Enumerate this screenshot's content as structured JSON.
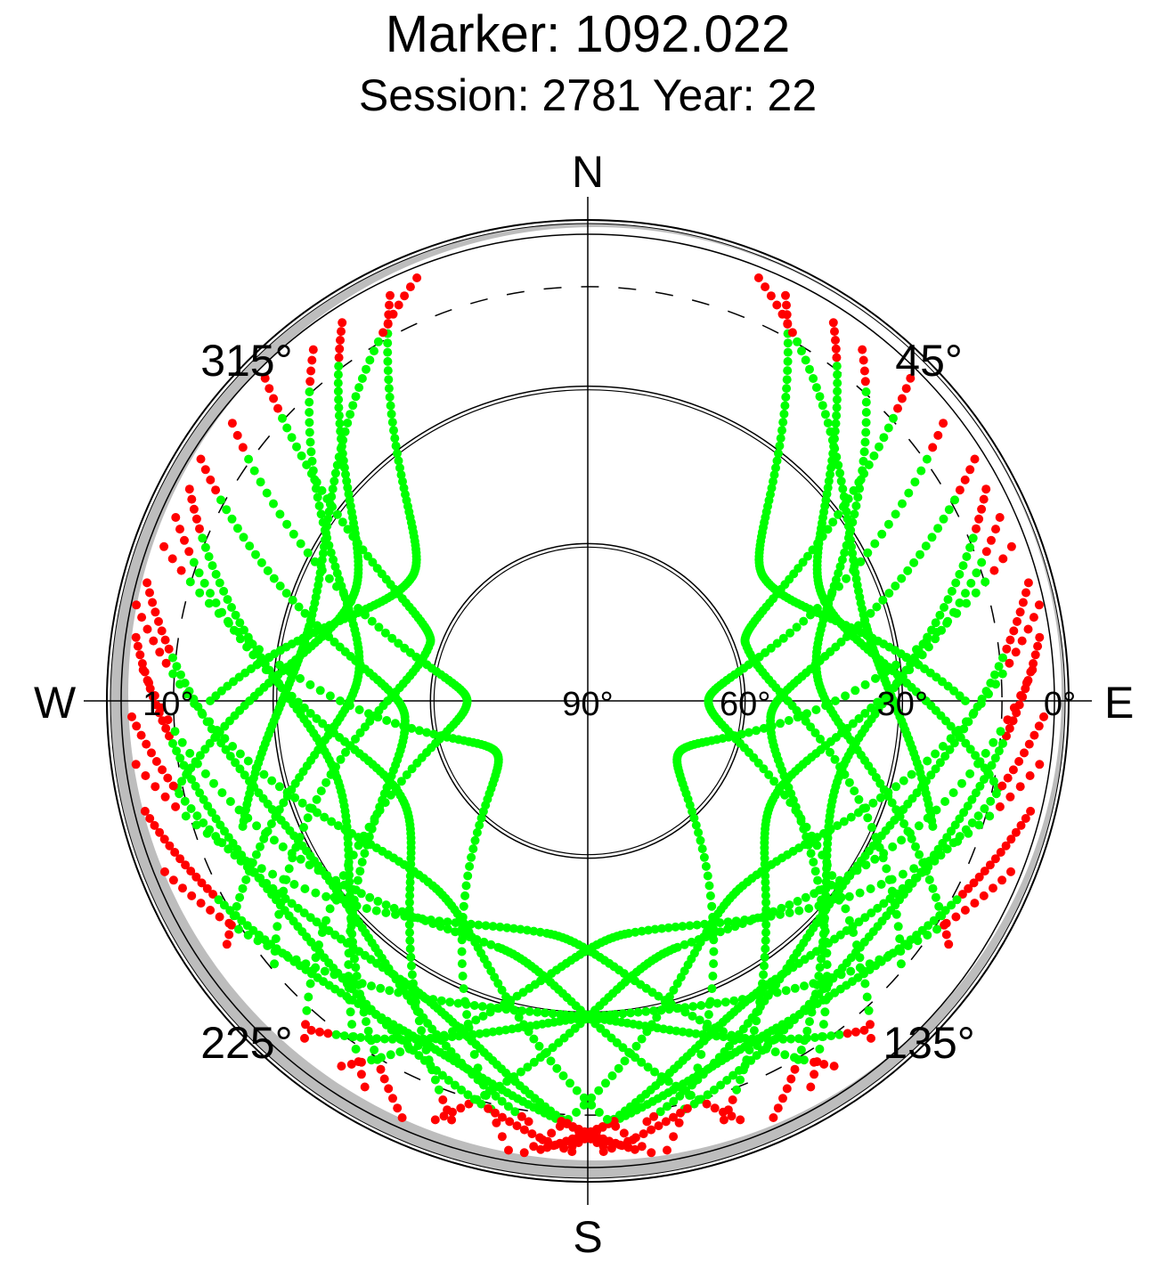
{
  "chart_data": {
    "type": "scatter",
    "projection": "polar-skyplot",
    "title": "Marker: 1092.022",
    "subtitle": "Session: 2781 Year: 22",
    "compass": {
      "north": "N",
      "south": "S",
      "east": "E",
      "west": "W"
    },
    "azimuth_labels": [
      {
        "azimuth": 45,
        "text": "45°"
      },
      {
        "azimuth": 135,
        "text": "135°"
      },
      {
        "azimuth": 225,
        "text": "225°"
      },
      {
        "azimuth": 315,
        "text": "315°"
      }
    ],
    "elevation_labels": [
      {
        "elevation": 90,
        "side": "east",
        "text": "90°"
      },
      {
        "elevation": 60,
        "side": "east",
        "text": "60°"
      },
      {
        "elevation": 30,
        "side": "east",
        "text": "30°"
      },
      {
        "elevation": 0,
        "side": "east",
        "text": "0°"
      },
      {
        "elevation": 10,
        "side": "west",
        "text": "10°"
      }
    ],
    "elevation_circles": [
      30,
      60
    ],
    "dashed_circle_elevation": 10,
    "horizon_mask_color": "#bdbdbd",
    "series_colors": {
      "above_cutoff": "#00ff00",
      "below_cutoff": "#ff0000"
    },
    "cutoff_elevation": 10,
    "tracks": [
      {
        "start": [
          26,
          4
        ],
        "peak": [
          55,
          49
        ],
        "end": [
          90,
          18
        ]
      },
      {
        "start": [
          33,
          4
        ],
        "peak": [
          66,
          41
        ],
        "end": [
          102,
          10
        ]
      },
      {
        "start": [
          38,
          5
        ],
        "peak": [
          83,
          46
        ],
        "end": [
          124,
          7
        ]
      },
      {
        "start": [
          45,
          3
        ],
        "peak": [
          70,
          58
        ],
        "end": [
          130,
          12
        ]
      },
      {
        "start": [
          52,
          4
        ],
        "peak": [
          90,
          67
        ],
        "end": [
          140,
          6
        ]
      },
      {
        "start": [
          58,
          3
        ],
        "peak": [
          95,
          55
        ],
        "end": [
          150,
          5
        ]
      },
      {
        "start": [
          62,
          4
        ],
        "peak": [
          108,
          40
        ],
        "end": [
          156,
          3
        ]
      },
      {
        "start": [
          66,
          4
        ],
        "peak": [
          118,
          50
        ],
        "end": [
          162,
          6
        ]
      },
      {
        "start": [
          70,
          4
        ],
        "peak": [
          120,
          70
        ],
        "end": [
          170,
          3
        ]
      },
      {
        "start": [
          75,
          3
        ],
        "peak": [
          126,
          30
        ],
        "end": [
          172,
          9
        ]
      },
      {
        "start": [
          78,
          2
        ],
        "peak": [
          140,
          44
        ],
        "end": [
          188,
          3
        ]
      },
      {
        "start": [
          82,
          3
        ],
        "peak": [
          130,
          20
        ],
        "end": [
          178,
          4
        ]
      },
      {
        "start": [
          86,
          5
        ],
        "peak": [
          160,
          40
        ],
        "end": [
          200,
          5
        ]
      },
      {
        "start": [
          92,
          3
        ],
        "peak": [
          146,
          26
        ],
        "end": [
          182,
          5
        ]
      },
      {
        "start": [
          98,
          3
        ],
        "peak": [
          170,
          45
        ],
        "end": [
          214,
          6
        ]
      },
      {
        "start": [
          104,
          3
        ],
        "peak": [
          150,
          18
        ],
        "end": [
          186,
          4
        ]
      },
      {
        "start": [
          112,
          3
        ],
        "peak": [
          175,
          30
        ],
        "end": [
          220,
          8
        ]
      },
      {
        "start": [
          334,
          4
        ],
        "peak": [
          305,
          49
        ],
        "end": [
          270,
          18
        ]
      },
      {
        "start": [
          327,
          4
        ],
        "peak": [
          294,
          41
        ],
        "end": [
          258,
          10
        ]
      },
      {
        "start": [
          322,
          5
        ],
        "peak": [
          277,
          46
        ],
        "end": [
          236,
          7
        ]
      },
      {
        "start": [
          315,
          3
        ],
        "peak": [
          290,
          58
        ],
        "end": [
          230,
          12
        ]
      },
      {
        "start": [
          308,
          4
        ],
        "peak": [
          270,
          67
        ],
        "end": [
          220,
          6
        ]
      },
      {
        "start": [
          302,
          3
        ],
        "peak": [
          265,
          55
        ],
        "end": [
          210,
          5
        ]
      },
      {
        "start": [
          298,
          4
        ],
        "peak": [
          252,
          40
        ],
        "end": [
          204,
          3
        ]
      },
      {
        "start": [
          294,
          4
        ],
        "peak": [
          242,
          50
        ],
        "end": [
          198,
          6
        ]
      },
      {
        "start": [
          290,
          4
        ],
        "peak": [
          240,
          70
        ],
        "end": [
          190,
          3
        ]
      },
      {
        "start": [
          285,
          3
        ],
        "peak": [
          234,
          30
        ],
        "end": [
          188,
          9
        ]
      },
      {
        "start": [
          282,
          2
        ],
        "peak": [
          220,
          44
        ],
        "end": [
          172,
          3
        ]
      },
      {
        "start": [
          278,
          3
        ],
        "peak": [
          230,
          20
        ],
        "end": [
          182,
          4
        ]
      },
      {
        "start": [
          274,
          5
        ],
        "peak": [
          200,
          40
        ],
        "end": [
          160,
          5
        ]
      },
      {
        "start": [
          268,
          3
        ],
        "peak": [
          214,
          26
        ],
        "end": [
          178,
          5
        ]
      },
      {
        "start": [
          262,
          3
        ],
        "peak": [
          190,
          45
        ],
        "end": [
          146,
          6
        ]
      },
      {
        "start": [
          256,
          3
        ],
        "peak": [
          210,
          18
        ],
        "end": [
          174,
          4
        ]
      },
      {
        "start": [
          248,
          3
        ],
        "peak": [
          185,
          30
        ],
        "end": [
          140,
          8
        ]
      },
      {
        "start": [
          22,
          3
        ],
        "peak": [
          75,
          35
        ],
        "end": [
          110,
          20
        ]
      },
      {
        "start": [
          338,
          3
        ],
        "peak": [
          285,
          35
        ],
        "end": [
          250,
          20
        ]
      }
    ]
  }
}
